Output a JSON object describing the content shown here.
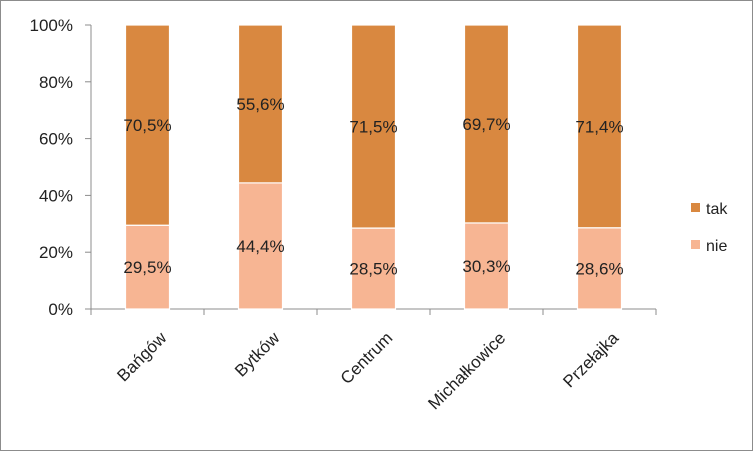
{
  "chart_data": {
    "type": "bar",
    "stacked": true,
    "percent": true,
    "categories": [
      "Bańgów",
      "Bytków",
      "Centrum",
      "Michałkowice",
      "Przełajka"
    ],
    "series": [
      {
        "name": "nie",
        "values": [
          29.5,
          44.4,
          28.5,
          30.3,
          28.6
        ],
        "labels": [
          "29,5%",
          "44,4%",
          "28,5%",
          "30,3%",
          "28,6%"
        ],
        "color": "#f7b593"
      },
      {
        "name": "tak",
        "values": [
          70.5,
          55.6,
          71.5,
          69.7,
          71.4
        ],
        "labels": [
          "70,5%",
          "55,6%",
          "71,5%",
          "69,7%",
          "71,4%"
        ],
        "color": "#d98840"
      }
    ],
    "ylim": [
      0,
      100
    ],
    "yticks": [
      "0%",
      "20%",
      "40%",
      "60%",
      "80%",
      "100%"
    ],
    "grid": false,
    "legend": "right",
    "legend_order": [
      "tak",
      "nie"
    ]
  }
}
